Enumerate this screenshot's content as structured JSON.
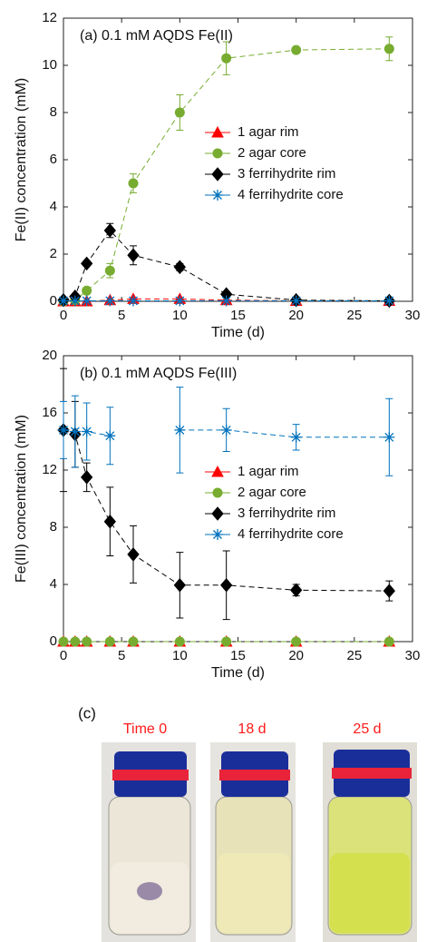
{
  "chart_data": [
    {
      "type": "line",
      "title": "(a) 0.1 mM AQDS Fe(II)",
      "xlabel": "Time (d)",
      "ylabel": "Fe(II) concentration (mM)",
      "x": [
        0,
        1,
        2,
        4,
        6,
        10,
        14,
        20,
        28
      ],
      "xlim": [
        0,
        30
      ],
      "xticks": [
        0,
        5,
        10,
        15,
        20,
        25,
        30
      ],
      "ylim": [
        0,
        12
      ],
      "yticks": [
        0,
        2,
        4,
        6,
        8,
        10,
        12
      ],
      "linestyle": "dashed",
      "series": [
        {
          "name": "1 agar rim",
          "color": "#ff0000",
          "marker": "triangle",
          "values": [
            0,
            0,
            0,
            0.05,
            0.1,
            0.1,
            0.05,
            0.02,
            0.02
          ],
          "errors": [
            0,
            0,
            0,
            0,
            0.05,
            0.05,
            0,
            0,
            0
          ]
        },
        {
          "name": "2 agar core",
          "color": "#77ac30",
          "marker": "circle",
          "values": [
            0,
            0.05,
            0.45,
            1.3,
            5.0,
            8.0,
            10.3,
            10.65,
            10.7
          ],
          "errors": [
            0,
            0,
            0.1,
            0.3,
            0.4,
            0.75,
            0.7,
            0.1,
            0.5
          ]
        },
        {
          "name": "3 ferrihydrite rim",
          "color": "#000000",
          "marker": "diamond",
          "values": [
            0.05,
            0.2,
            1.6,
            3.0,
            1.95,
            1.45,
            0.3,
            0.05,
            0.02
          ],
          "errors": [
            0,
            0.1,
            0.1,
            0.3,
            0.4,
            0.15,
            0.1,
            0,
            0
          ]
        },
        {
          "name": "4 ferrihydrite core",
          "color": "#0072bd",
          "marker": "star",
          "values": [
            0.02,
            0.02,
            0.02,
            0.02,
            0.02,
            0.02,
            0.02,
            0.02,
            0.02
          ],
          "errors": [
            0,
            0,
            0,
            0,
            0,
            0,
            0,
            0,
            0
          ]
        }
      ]
    },
    {
      "type": "line",
      "title": "(b) 0.1 mM AQDS Fe(III)",
      "xlabel": "Time (d)",
      "ylabel": "Fe(III) concentration (mM)",
      "x": [
        0,
        1,
        2,
        4,
        6,
        10,
        14,
        20,
        28
      ],
      "xlim": [
        0,
        30
      ],
      "xticks": [
        0,
        5,
        10,
        15,
        20,
        25,
        30
      ],
      "ylim": [
        0,
        20
      ],
      "yticks": [
        0,
        4,
        8,
        12,
        16,
        20
      ],
      "linestyle": "dashed",
      "series": [
        {
          "name": "1 agar rim",
          "color": "#ff0000",
          "marker": "triangle",
          "values": [
            0,
            0,
            0,
            0,
            0,
            0,
            0,
            0,
            0
          ],
          "errors": [
            0,
            0,
            0,
            0,
            0,
            0,
            0,
            0,
            0
          ]
        },
        {
          "name": "2 agar core",
          "color": "#77ac30",
          "marker": "circle",
          "values": [
            0,
            0,
            0,
            0,
            0,
            0,
            0,
            0,
            0
          ],
          "errors": [
            0,
            0,
            0,
            0,
            0,
            0,
            0,
            0,
            0
          ]
        },
        {
          "name": "3 ferrihydrite rim",
          "color": "#000000",
          "marker": "diamond",
          "values": [
            14.8,
            14.5,
            11.5,
            8.4,
            6.1,
            3.95,
            3.95,
            3.6,
            3.55
          ],
          "errors": [
            4.3,
            2.3,
            1,
            2.4,
            2,
            2.3,
            2.4,
            0.4,
            0.7
          ]
        },
        {
          "name": "4 ferrihydrite core",
          "color": "#0072bd",
          "marker": "star",
          "values": [
            14.8,
            14.7,
            14.7,
            14.4,
            null,
            14.8,
            14.8,
            14.3,
            14.3
          ],
          "errors": [
            2,
            2.5,
            2,
            2,
            null,
            3,
            1.5,
            0.9,
            2.7
          ]
        }
      ]
    }
  ],
  "panel_c": {
    "label": "(c)",
    "captions": [
      "Time 0",
      "18 d",
      "25 d"
    ]
  }
}
